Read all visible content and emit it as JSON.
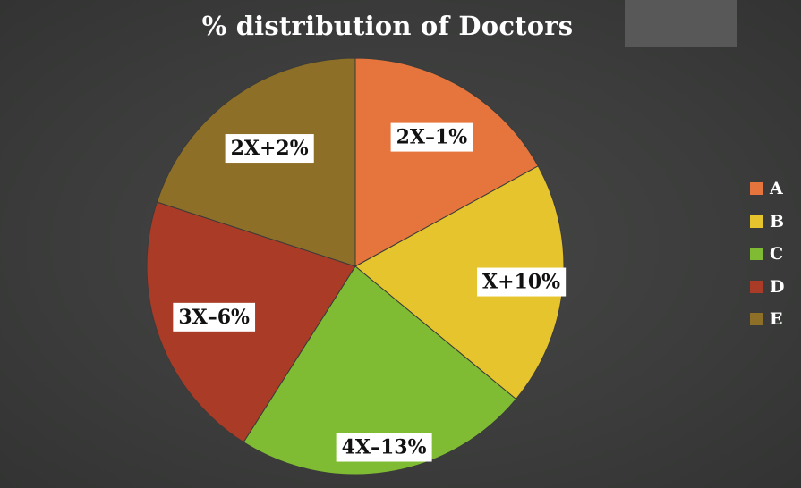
{
  "chart_data": {
    "type": "pie",
    "title": "% distribution of Doctors",
    "slices": [
      {
        "name": "A",
        "label": "2X–1%",
        "value": 17,
        "color": "#e5753c"
      },
      {
        "name": "B",
        "label": "X+10%",
        "value": 19,
        "color": "#e6c42d"
      },
      {
        "name": "C",
        "label": "4X–13%",
        "value": 23,
        "color": "#7fbc33"
      },
      {
        "name": "D",
        "label": "3X–6%",
        "value": 21,
        "color": "#aa3b27"
      },
      {
        "name": "E",
        "label": "2X+2%",
        "value": 20,
        "color": "#8e6f27"
      }
    ],
    "legend_position": "right"
  }
}
